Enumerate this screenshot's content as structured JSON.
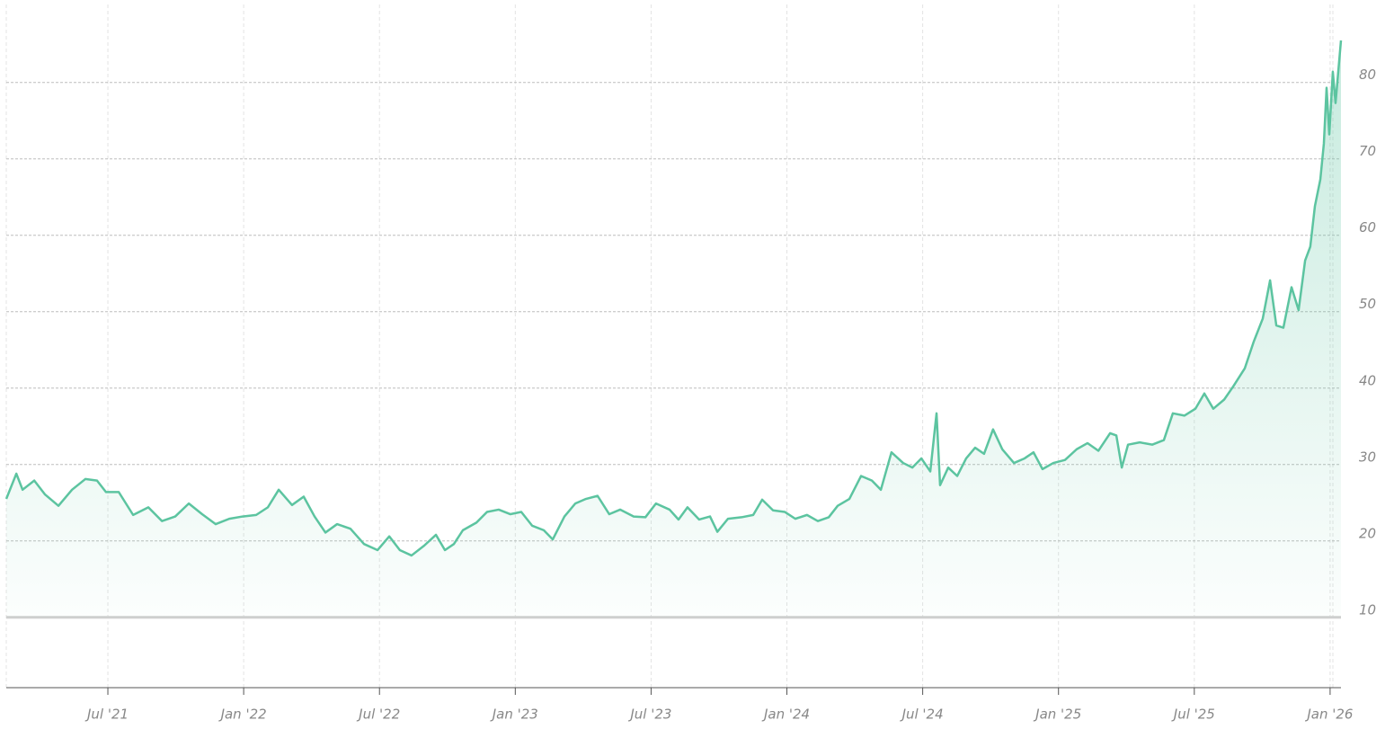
{
  "chart_data": {
    "type": "line",
    "color": "#5cc4a0",
    "grid": true,
    "xlim": [
      2021.126,
      2026.04
    ],
    "xticks": [
      {
        "value": 2021.5,
        "label": "Jul '21"
      },
      {
        "value": 2022.0,
        "label": "Jan '22"
      },
      {
        "value": 2022.5,
        "label": "Jul '22"
      },
      {
        "value": 2023.0,
        "label": "Jan '23"
      },
      {
        "value": 2023.5,
        "label": "Jul '23"
      },
      {
        "value": 2024.0,
        "label": "Jan '24"
      },
      {
        "value": 2024.5,
        "label": "Jul '24"
      },
      {
        "value": 2025.0,
        "label": "Jan '25"
      },
      {
        "value": 2025.5,
        "label": "Jul '25"
      },
      {
        "value": 2026.0,
        "label": "Jan '26"
      }
    ],
    "ylim": [
      0.8,
      90.2
    ],
    "yticks": [
      10,
      20,
      30,
      40,
      50,
      60,
      70,
      80
    ],
    "x": [
      2021.126,
      2021.163,
      2021.186,
      2021.229,
      2021.268,
      2021.318,
      2021.368,
      2021.417,
      2021.46,
      2021.493,
      2021.54,
      2021.593,
      2021.649,
      2021.699,
      2021.748,
      2021.798,
      2021.847,
      2021.897,
      2021.947,
      2021.996,
      2022.046,
      2022.089,
      2022.129,
      2022.178,
      2022.221,
      2022.261,
      2022.301,
      2022.344,
      2022.393,
      2022.443,
      2022.493,
      2022.536,
      2022.575,
      2022.618,
      2022.665,
      2022.708,
      2022.741,
      2022.774,
      2022.807,
      2022.857,
      2022.896,
      2022.939,
      2022.982,
      2023.022,
      2023.062,
      2023.105,
      2023.138,
      2023.181,
      2023.221,
      2023.26,
      2023.303,
      2023.346,
      2023.386,
      2023.436,
      2023.479,
      2023.518,
      2023.568,
      2023.601,
      2023.634,
      2023.677,
      2023.717,
      2023.744,
      2023.783,
      2023.833,
      2023.876,
      2023.909,
      2023.949,
      2023.992,
      2024.031,
      2024.074,
      2024.114,
      2024.154,
      2024.187,
      2024.23,
      2024.273,
      2024.313,
      2024.346,
      2024.385,
      2024.428,
      2024.462,
      2024.495,
      2024.528,
      2024.551,
      2024.564,
      2024.594,
      2024.627,
      2024.66,
      2024.693,
      2024.726,
      2024.759,
      2024.793,
      2024.836,
      2024.875,
      2024.908,
      2024.941,
      2024.981,
      2025.024,
      2025.067,
      2025.107,
      2025.147,
      2025.19,
      2025.213,
      2025.233,
      2025.256,
      2025.299,
      2025.345,
      2025.388,
      2025.421,
      2025.464,
      2025.504,
      2025.537,
      2025.57,
      2025.61,
      2025.643,
      2025.686,
      2025.719,
      2025.752,
      2025.779,
      2025.802,
      2025.828,
      2025.858,
      2025.884,
      2025.908,
      2025.927,
      2025.944,
      2025.964,
      2025.977,
      2025.987,
      2025.997,
      2026.01,
      2026.02,
      2026.04
    ],
    "values": [
      25.5,
      28.8,
      26.7,
      27.9,
      26.1,
      24.6,
      26.7,
      28.1,
      27.9,
      26.4,
      26.4,
      23.4,
      24.4,
      22.6,
      23.2,
      24.9,
      23.5,
      22.2,
      22.9,
      23.2,
      23.4,
      24.4,
      26.7,
      24.7,
      25.8,
      23.2,
      21.1,
      22.2,
      21.6,
      19.6,
      18.8,
      20.6,
      18.8,
      18.1,
      19.4,
      20.8,
      18.8,
      19.6,
      21.4,
      22.4,
      23.8,
      24.1,
      23.5,
      23.8,
      22.0,
      21.4,
      20.2,
      23.2,
      24.9,
      25.5,
      25.9,
      23.5,
      24.1,
      23.2,
      23.1,
      24.9,
      24.1,
      22.8,
      24.4,
      22.8,
      23.2,
      21.2,
      22.9,
      23.1,
      23.4,
      25.4,
      24.0,
      23.8,
      22.9,
      23.4,
      22.6,
      23.1,
      24.6,
      25.5,
      28.5,
      27.9,
      26.7,
      31.6,
      30.2,
      29.6,
      30.8,
      29.1,
      36.7,
      27.3,
      29.6,
      28.5,
      30.8,
      32.2,
      31.4,
      34.6,
      32.0,
      30.2,
      30.8,
      31.6,
      29.4,
      30.2,
      30.6,
      32.0,
      32.8,
      31.8,
      34.1,
      33.8,
      29.6,
      32.6,
      32.9,
      32.6,
      33.2,
      36.7,
      36.4,
      37.3,
      39.3,
      37.3,
      38.5,
      40.2,
      42.6,
      46.1,
      49.1,
      54.1,
      48.2,
      47.9,
      53.2,
      50.2,
      56.7,
      58.5,
      63.8,
      67.3,
      72.0,
      79.3,
      73.2,
      81.4,
      77.3,
      85.5
    ]
  }
}
